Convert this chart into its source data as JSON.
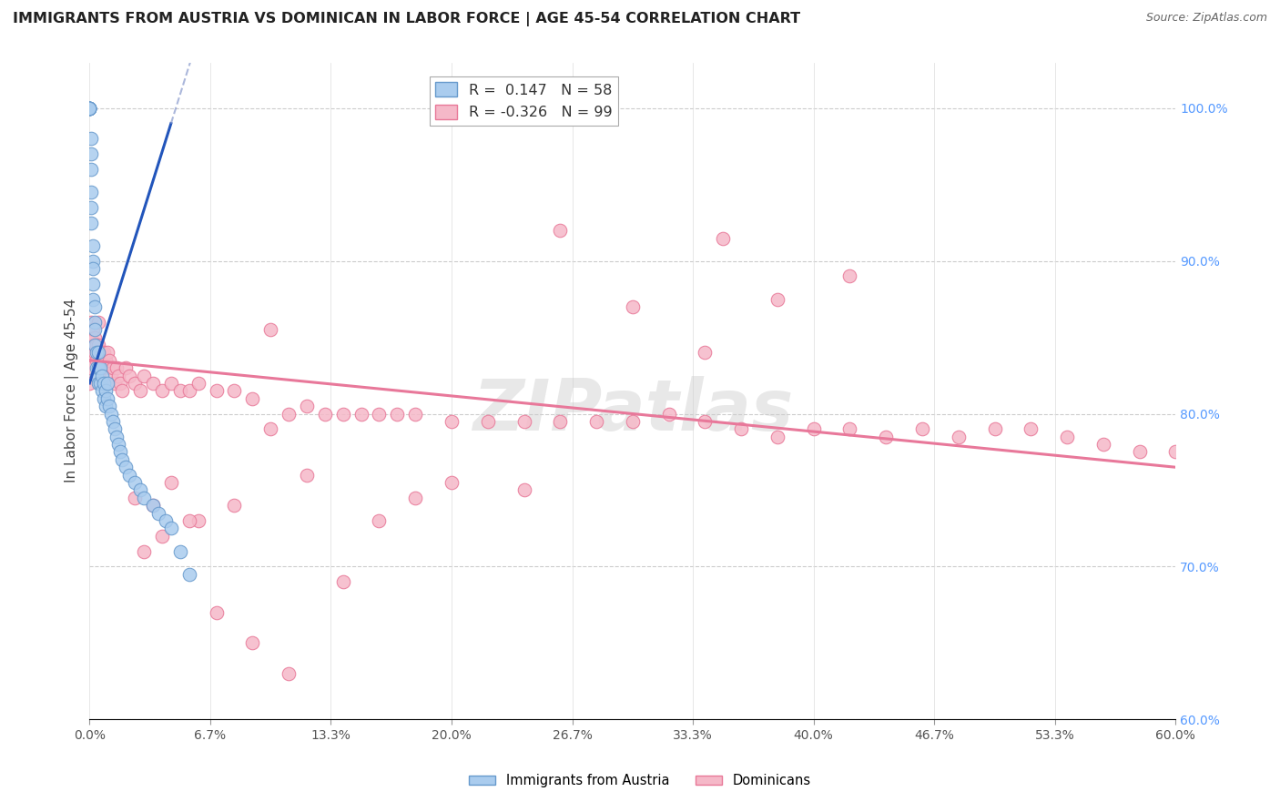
{
  "title": "IMMIGRANTS FROM AUSTRIA VS DOMINICAN IN LABOR FORCE | AGE 45-54 CORRELATION CHART",
  "source": "Source: ZipAtlas.com",
  "ylabel": "In Labor Force | Age 45-54",
  "ylabel_right_ticks": [
    "60.0%",
    "70.0%",
    "80.0%",
    "90.0%",
    "100.0%"
  ],
  "ylabel_right_vals": [
    0.6,
    0.7,
    0.8,
    0.9,
    1.0
  ],
  "xmin": 0.0,
  "xmax": 0.6,
  "ymin": 0.6,
  "ymax": 1.03,
  "legend_r_austria": "0.147",
  "legend_n_austria": "58",
  "legend_r_dominican": "-0.326",
  "legend_n_dominican": "99",
  "austria_color": "#aaccee",
  "austria_edge": "#6699cc",
  "dominican_color": "#f5b8c8",
  "dominican_edge": "#e87898",
  "austria_line_color": "#2255bb",
  "austria_dash_color": "#8899cc",
  "dominican_line_color": "#e8789a",
  "austria_scatter_x": [
    0.0,
    0.0,
    0.0,
    0.0,
    0.0,
    0.0,
    0.0,
    0.0,
    0.001,
    0.001,
    0.001,
    0.001,
    0.001,
    0.001,
    0.002,
    0.002,
    0.002,
    0.002,
    0.002,
    0.003,
    0.003,
    0.003,
    0.003,
    0.004,
    0.004,
    0.004,
    0.005,
    0.005,
    0.005,
    0.006,
    0.006,
    0.007,
    0.007,
    0.008,
    0.008,
    0.009,
    0.009,
    0.01,
    0.01,
    0.011,
    0.012,
    0.013,
    0.014,
    0.015,
    0.016,
    0.017,
    0.018,
    0.02,
    0.022,
    0.025,
    0.028,
    0.03,
    0.035,
    0.038,
    0.042,
    0.045,
    0.05,
    0.055
  ],
  "austria_scatter_y": [
    1.0,
    1.0,
    1.0,
    1.0,
    1.0,
    1.0,
    1.0,
    1.0,
    0.98,
    0.97,
    0.96,
    0.945,
    0.935,
    0.925,
    0.91,
    0.9,
    0.895,
    0.885,
    0.875,
    0.87,
    0.86,
    0.855,
    0.845,
    0.84,
    0.83,
    0.825,
    0.84,
    0.83,
    0.82,
    0.83,
    0.82,
    0.825,
    0.815,
    0.82,
    0.81,
    0.815,
    0.805,
    0.82,
    0.81,
    0.805,
    0.8,
    0.795,
    0.79,
    0.785,
    0.78,
    0.775,
    0.77,
    0.765,
    0.76,
    0.755,
    0.75,
    0.745,
    0.74,
    0.735,
    0.73,
    0.725,
    0.71,
    0.695
  ],
  "dominican_scatter_x": [
    0.0,
    0.0,
    0.0,
    0.001,
    0.001,
    0.002,
    0.002,
    0.003,
    0.003,
    0.004,
    0.004,
    0.005,
    0.005,
    0.006,
    0.006,
    0.007,
    0.007,
    0.008,
    0.008,
    0.009,
    0.009,
    0.01,
    0.01,
    0.011,
    0.012,
    0.013,
    0.014,
    0.015,
    0.016,
    0.017,
    0.018,
    0.02,
    0.022,
    0.025,
    0.028,
    0.03,
    0.035,
    0.04,
    0.045,
    0.05,
    0.055,
    0.06,
    0.07,
    0.08,
    0.09,
    0.1,
    0.11,
    0.12,
    0.13,
    0.14,
    0.15,
    0.16,
    0.17,
    0.18,
    0.2,
    0.22,
    0.24,
    0.26,
    0.28,
    0.3,
    0.32,
    0.34,
    0.36,
    0.38,
    0.4,
    0.42,
    0.44,
    0.46,
    0.48,
    0.5,
    0.52,
    0.54,
    0.56,
    0.58,
    0.6,
    0.35,
    0.38,
    0.42,
    0.26,
    0.3,
    0.34,
    0.2,
    0.24,
    0.16,
    0.18,
    0.1,
    0.12,
    0.08,
    0.06,
    0.04,
    0.025,
    0.03,
    0.035,
    0.045,
    0.055,
    0.07,
    0.09,
    0.11,
    0.14
  ],
  "dominican_scatter_y": [
    0.84,
    0.83,
    0.82,
    0.86,
    0.85,
    0.855,
    0.845,
    0.85,
    0.84,
    0.845,
    0.835,
    0.86,
    0.845,
    0.84,
    0.83,
    0.84,
    0.83,
    0.84,
    0.83,
    0.835,
    0.82,
    0.84,
    0.83,
    0.835,
    0.825,
    0.83,
    0.82,
    0.83,
    0.825,
    0.82,
    0.815,
    0.83,
    0.825,
    0.82,
    0.815,
    0.825,
    0.82,
    0.815,
    0.82,
    0.815,
    0.815,
    0.82,
    0.815,
    0.815,
    0.81,
    0.855,
    0.8,
    0.805,
    0.8,
    0.8,
    0.8,
    0.8,
    0.8,
    0.8,
    0.795,
    0.795,
    0.795,
    0.795,
    0.795,
    0.795,
    0.8,
    0.795,
    0.79,
    0.785,
    0.79,
    0.79,
    0.785,
    0.79,
    0.785,
    0.79,
    0.79,
    0.785,
    0.78,
    0.775,
    0.775,
    0.915,
    0.875,
    0.89,
    0.92,
    0.87,
    0.84,
    0.755,
    0.75,
    0.73,
    0.745,
    0.79,
    0.76,
    0.74,
    0.73,
    0.72,
    0.745,
    0.71,
    0.74,
    0.755,
    0.73,
    0.67,
    0.65,
    0.63,
    0.69
  ],
  "background_color": "#ffffff",
  "grid_color": "#cccccc",
  "watermark": "ZIPatlas"
}
